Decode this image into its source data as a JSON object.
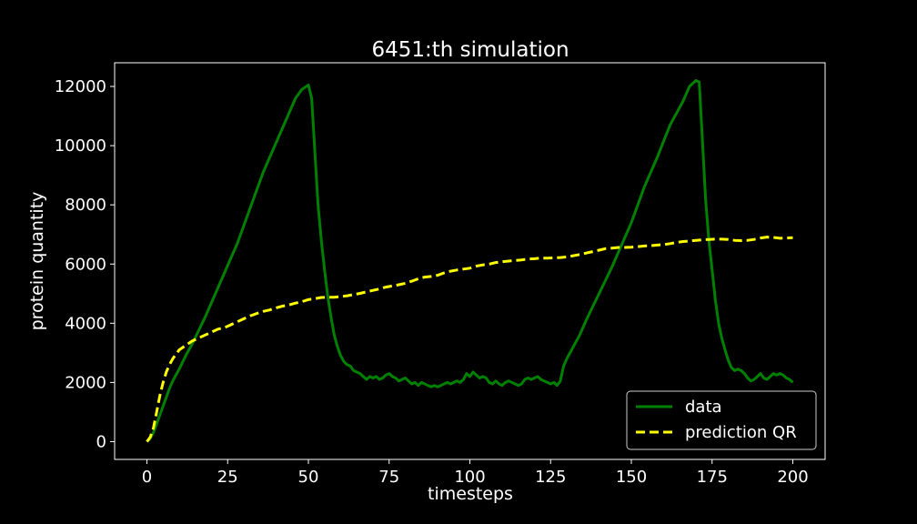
{
  "chart_data": {
    "type": "line",
    "title": "6451:th simulation",
    "xlabel": "timesteps",
    "ylabel": "protein quantity",
    "xlim": [
      -10,
      210
    ],
    "ylim": [
      -600,
      12800
    ],
    "xticks": [
      0,
      25,
      50,
      75,
      100,
      125,
      150,
      175,
      200
    ],
    "yticks": [
      0,
      2000,
      4000,
      6000,
      8000,
      10000,
      12000
    ],
    "grid": false,
    "legend_position": "lower-right",
    "series": [
      {
        "name": "data",
        "color": "#008000",
        "style": "solid",
        "x": [
          0,
          1,
          2,
          3,
          4,
          5,
          6,
          7,
          8,
          9,
          10,
          12,
          14,
          16,
          18,
          20,
          22,
          24,
          26,
          28,
          30,
          32,
          34,
          36,
          38,
          40,
          42,
          44,
          46,
          48,
          50,
          51,
          52,
          53,
          54,
          55,
          56,
          57,
          58,
          59,
          60,
          61,
          62,
          63,
          64,
          65,
          66,
          67,
          68,
          69,
          70,
          71,
          72,
          73,
          74,
          75,
          76,
          77,
          78,
          79,
          80,
          81,
          82,
          83,
          84,
          85,
          86,
          87,
          88,
          89,
          90,
          91,
          92,
          93,
          94,
          95,
          96,
          97,
          98,
          99,
          100,
          101,
          102,
          103,
          104,
          105,
          106,
          107,
          108,
          109,
          110,
          111,
          112,
          113,
          114,
          115,
          116,
          117,
          118,
          119,
          120,
          121,
          122,
          123,
          124,
          125,
          126,
          127,
          128,
          129,
          130,
          132,
          134,
          136,
          138,
          140,
          142,
          144,
          146,
          148,
          150,
          152,
          154,
          156,
          158,
          160,
          162,
          164,
          166,
          168,
          170,
          171,
          172,
          173,
          174,
          175,
          176,
          177,
          178,
          179,
          180,
          181,
          182,
          183,
          184,
          185,
          186,
          187,
          188,
          189,
          190,
          191,
          192,
          193,
          194,
          195,
          196,
          197,
          198,
          199,
          200
        ],
        "y": [
          0,
          100,
          300,
          600,
          900,
          1200,
          1500,
          1800,
          2050,
          2250,
          2450,
          2900,
          3300,
          3750,
          4200,
          4700,
          5200,
          5700,
          6200,
          6700,
          7300,
          7900,
          8500,
          9100,
          9600,
          10100,
          10600,
          11100,
          11600,
          11900,
          12050,
          11600,
          9800,
          8000,
          6800,
          5800,
          4900,
          4200,
          3600,
          3200,
          2900,
          2700,
          2600,
          2550,
          2400,
          2350,
          2300,
          2200,
          2100,
          2200,
          2150,
          2200,
          2100,
          2150,
          2250,
          2300,
          2200,
          2150,
          2050,
          2100,
          2150,
          2050,
          1950,
          2000,
          1900,
          2000,
          1950,
          1900,
          1850,
          1900,
          1850,
          1900,
          1950,
          2000,
          1950,
          2000,
          2050,
          2000,
          2100,
          2300,
          2200,
          2350,
          2250,
          2150,
          2200,
          2150,
          2000,
          1950,
          2050,
          1950,
          1900,
          2000,
          2050,
          2000,
          1950,
          1900,
          1950,
          2100,
          2150,
          2100,
          2150,
          2200,
          2100,
          2050,
          2000,
          1950,
          2000,
          1900,
          2050,
          2550,
          2800,
          3200,
          3600,
          4100,
          4550,
          5000,
          5450,
          5900,
          6400,
          6900,
          7400,
          8000,
          8600,
          9100,
          9600,
          10150,
          10700,
          11100,
          11500,
          12000,
          12200,
          12150,
          10200,
          8200,
          6800,
          5800,
          4800,
          4000,
          3500,
          3100,
          2750,
          2500,
          2400,
          2450,
          2400,
          2300,
          2150,
          2050,
          2100,
          2200,
          2300,
          2150,
          2100,
          2200,
          2300,
          2250,
          2300,
          2250,
          2150,
          2100,
          2000
        ]
      },
      {
        "name": "prediction QR",
        "color": "#ffff00",
        "style": "dashed",
        "x": [
          0,
          1,
          2,
          3,
          4,
          5,
          6,
          7,
          8,
          9,
          10,
          12,
          14,
          16,
          18,
          20,
          22,
          24,
          26,
          28,
          30,
          32,
          34,
          36,
          38,
          40,
          42,
          44,
          46,
          48,
          50,
          52,
          54,
          56,
          58,
          60,
          62,
          64,
          66,
          68,
          70,
          72,
          74,
          76,
          78,
          80,
          82,
          84,
          86,
          88,
          90,
          92,
          94,
          96,
          98,
          100,
          102,
          104,
          106,
          108,
          110,
          112,
          114,
          116,
          118,
          120,
          122,
          124,
          126,
          128,
          130,
          132,
          134,
          136,
          138,
          140,
          142,
          144,
          146,
          148,
          150,
          152,
          154,
          156,
          158,
          160,
          162,
          164,
          166,
          168,
          170,
          172,
          174,
          176,
          178,
          180,
          182,
          184,
          186,
          188,
          190,
          192,
          194,
          196,
          198,
          200
        ],
        "y": [
          0,
          150,
          450,
          1000,
          1550,
          2000,
          2350,
          2600,
          2800,
          2950,
          3100,
          3250,
          3400,
          3500,
          3600,
          3700,
          3800,
          3850,
          3950,
          4050,
          4150,
          4250,
          4330,
          4400,
          4450,
          4520,
          4580,
          4620,
          4680,
          4730,
          4800,
          4830,
          4870,
          4880,
          4880,
          4900,
          4930,
          4970,
          5010,
          5060,
          5110,
          5160,
          5220,
          5260,
          5300,
          5350,
          5420,
          5500,
          5560,
          5580,
          5620,
          5700,
          5760,
          5800,
          5830,
          5860,
          5930,
          5970,
          6000,
          6050,
          6080,
          6100,
          6120,
          6140,
          6170,
          6180,
          6200,
          6200,
          6210,
          6220,
          6240,
          6280,
          6320,
          6370,
          6420,
          6470,
          6520,
          6540,
          6560,
          6560,
          6570,
          6590,
          6610,
          6620,
          6640,
          6660,
          6690,
          6730,
          6760,
          6780,
          6800,
          6820,
          6830,
          6840,
          6840,
          6830,
          6800,
          6790,
          6800,
          6830,
          6880,
          6910,
          6900,
          6870,
          6880,
          6890
        ]
      }
    ]
  }
}
